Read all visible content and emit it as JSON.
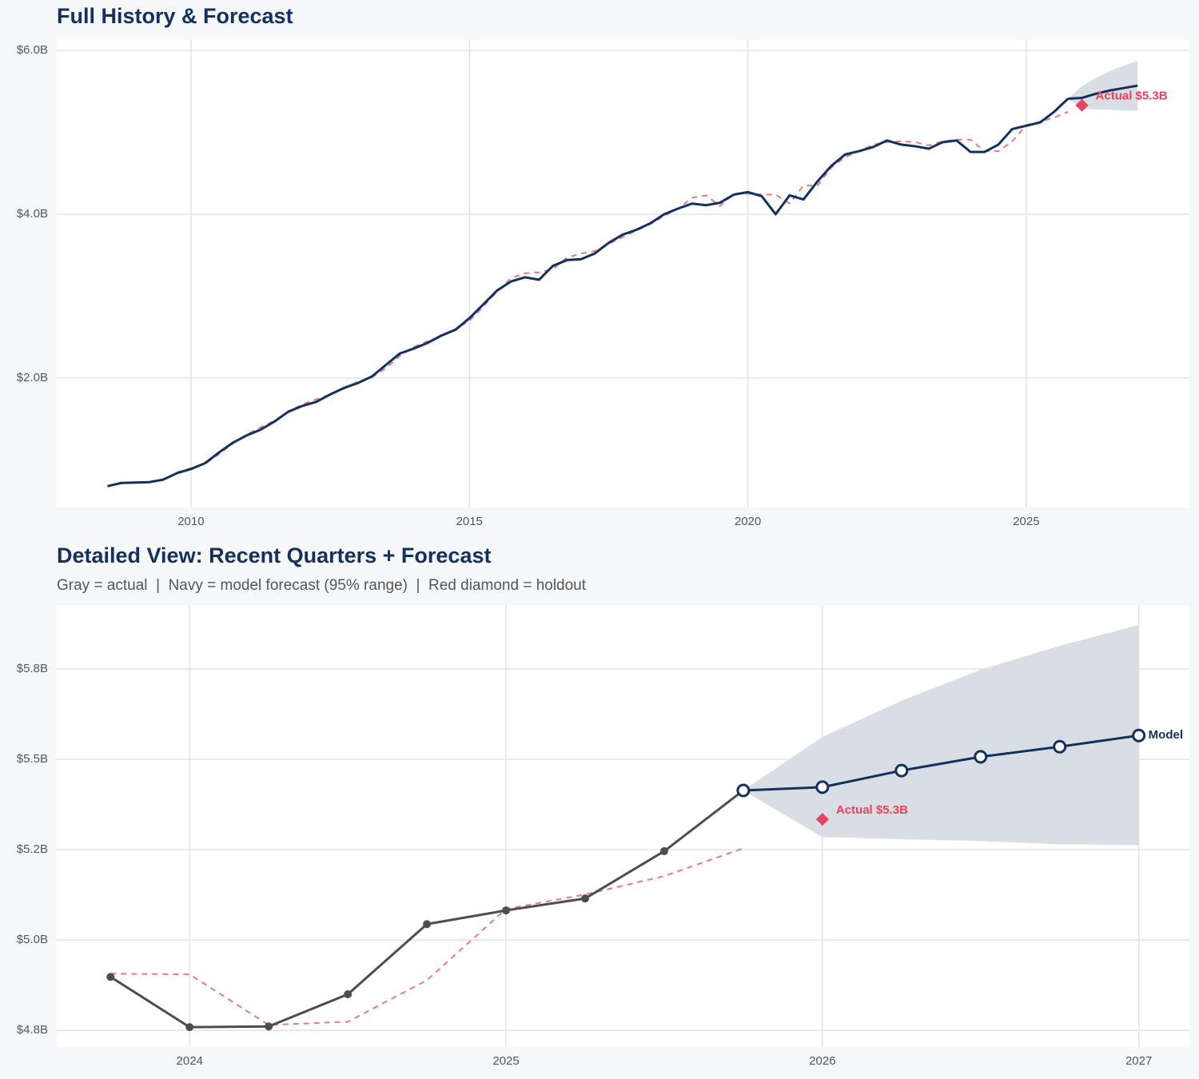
{
  "chart_data": [
    {
      "type": "line",
      "title": "Full History & Forecast",
      "xlim": [
        2007.59,
        2027.93
      ],
      "xticks": [
        2010,
        2015,
        2020,
        2025
      ],
      "ylim": [
        0.42,
        6.127
      ],
      "yticks": [
        {
          "value": 2,
          "label": "$2.0B"
        },
        {
          "value": 4,
          "label": "$4.0B"
        },
        {
          "value": 6,
          "label": "$6.0B"
        }
      ],
      "grid": true,
      "series": [
        {
          "color": "#e8788a",
          "dash": true,
          "marker": "none",
          "x": [
            2008.5,
            2008.75,
            2009,
            2009.25,
            2009.5,
            2009.75,
            2010,
            2010.25,
            2010.5,
            2010.75,
            2011,
            2011.25,
            2011.5,
            2011.75,
            2012,
            2012.25,
            2012.5,
            2012.75,
            2013,
            2013.25,
            2013.5,
            2013.75,
            2014,
            2014.25,
            2014.5,
            2014.75,
            2015,
            2015.25,
            2015.5,
            2015.75,
            2016,
            2016.25,
            2016.5,
            2016.75,
            2017,
            2017.25,
            2017.5,
            2017.75,
            2018,
            2018.25,
            2018.5,
            2018.75,
            2019,
            2019.25,
            2019.5,
            2019.75,
            2020,
            2020.25,
            2020.5,
            2020.75,
            2021,
            2021.25,
            2021.5,
            2021.75,
            2022,
            2022.25,
            2022.5,
            2022.75,
            2023,
            2023.25,
            2023.5,
            2023.75,
            2024,
            2024.25,
            2024.5,
            2024.75,
            2025,
            2025.25,
            2025.5,
            2025.75
          ],
          "values": [
            null,
            null,
            null,
            null,
            null,
            0.85,
            0.9,
            0.95,
            1.07,
            1.2,
            1.31,
            1.4,
            1.48,
            1.59,
            1.68,
            1.74,
            1.8,
            1.87,
            1.96,
            2.01,
            2.12,
            2.27,
            2.38,
            2.45,
            2.51,
            2.6,
            2.7,
            2.87,
            3.06,
            3.22,
            3.28,
            3.29,
            3.33,
            3.47,
            3.52,
            3.55,
            3.64,
            3.72,
            3.8,
            3.88,
            3.98,
            4.07,
            4.2,
            4.23,
            4.1,
            4.25,
            4.25,
            4.24,
            4.24,
            4.13,
            4.35,
            4.35,
            4.57,
            4.7,
            4.77,
            4.85,
            4.88,
            4.89,
            4.88,
            4.84,
            4.89,
            4.91,
            4.91,
            4.77,
            4.77,
            4.89,
            5.09,
            5.13,
            5.18,
            5.25
          ]
        },
        {
          "color": "#13315c",
          "marker": "none",
          "x": [
            2008.5,
            2008.75,
            2009,
            2009.25,
            2009.5,
            2009.75,
            2010,
            2010.25,
            2010.5,
            2010.75,
            2011,
            2011.25,
            2011.5,
            2011.75,
            2012,
            2012.25,
            2012.5,
            2012.75,
            2013,
            2013.25,
            2013.5,
            2013.75,
            2014,
            2014.25,
            2014.5,
            2014.75,
            2015,
            2015.25,
            2015.5,
            2015.75,
            2016,
            2016.25,
            2016.5,
            2016.75,
            2017,
            2017.25,
            2017.5,
            2017.75,
            2018,
            2018.25,
            2018.5,
            2018.75,
            2019,
            2019.25,
            2019.5,
            2019.75,
            2020,
            2020.25,
            2020.5,
            2020.75,
            2021,
            2021.25,
            2021.5,
            2021.75,
            2022,
            2022.25,
            2022.5,
            2022.75,
            2023,
            2023.25,
            2023.5,
            2023.75,
            2024,
            2024.25,
            2024.5,
            2024.75,
            2025,
            2025.25,
            2025.5,
            2025.75
          ],
          "values": [
            0.68,
            0.72,
            0.725,
            0.73,
            0.76,
            0.84,
            0.89,
            0.96,
            1.09,
            1.21,
            1.3,
            1.37,
            1.47,
            1.59,
            1.66,
            1.71,
            1.8,
            1.88,
            1.94,
            2.02,
            2.16,
            2.3,
            2.36,
            2.43,
            2.52,
            2.59,
            2.73,
            2.9,
            3.07,
            3.18,
            3.23,
            3.2,
            3.37,
            3.44,
            3.45,
            3.52,
            3.65,
            3.75,
            3.81,
            3.89,
            4.0,
            4.07,
            4.13,
            4.11,
            4.14,
            4.24,
            4.27,
            4.22,
            4.0,
            4.23,
            4.18,
            4.4,
            4.59,
            4.73,
            4.77,
            4.82,
            4.9,
            4.85,
            4.83,
            4.8,
            4.88,
            4.9,
            4.76,
            4.76,
            4.85,
            5.04,
            5.08,
            5.12,
            5.25,
            5.41
          ]
        },
        {
          "color": "#13315c",
          "marker": "none",
          "band_color": "#d9dde4",
          "x": [
            2025.75,
            2026,
            2026.25,
            2026.5,
            2026.75,
            2027
          ],
          "values": [
            5.41,
            5.42,
            5.47,
            5.51,
            5.54,
            5.57
          ],
          "band_lower": [
            5.41,
            5.285,
            5.279,
            5.274,
            5.265,
            5.263
          ],
          "band_upper": [
            5.41,
            5.562,
            5.662,
            5.748,
            5.814,
            5.872
          ]
        }
      ],
      "annotations": [
        {
          "x": 2026,
          "y": 5.33,
          "label": "Actual $5.3B",
          "color": "#e8435e"
        }
      ]
    },
    {
      "type": "line",
      "title": "Detailed View: Recent Quarters + Forecast",
      "subtitle": "Gray = actual  |  Navy = model forecast (95% range)  |  Red diamond = holdout",
      "xlim": [
        2023.58,
        2027.16
      ],
      "xticks": [
        2024,
        2025,
        2026,
        2027
      ],
      "ylim": [
        4.704,
        5.927
      ],
      "yticks": [
        {
          "value": 4.75,
          "label": "$4.8B"
        },
        {
          "value": 5,
          "label": "$5.0B"
        },
        {
          "value": 5.25,
          "label": "$5.2B"
        },
        {
          "value": 5.5,
          "label": "$5.5B"
        },
        {
          "value": 5.75,
          "label": "$5.8B"
        }
      ],
      "grid": true,
      "series": [
        {
          "color": "#e8788a",
          "dash": true,
          "marker": "none",
          "x": [
            2023.75,
            2024,
            2024.25,
            2024.5,
            2024.75,
            2025,
            2025.25,
            2025.5,
            2025.75
          ],
          "values": [
            4.907,
            4.905,
            4.765,
            4.774,
            4.889,
            5.086,
            5.126,
            5.177,
            5.254
          ]
        },
        {
          "color": "#4d4d4d",
          "marker": "filled",
          "x": [
            2023.75,
            2024,
            2024.25,
            2024.5,
            2024.75,
            2025,
            2025.25,
            2025.5,
            2025.75
          ],
          "values": [
            4.898,
            4.759,
            4.761,
            4.85,
            5.044,
            5.082,
            5.115,
            5.246,
            5.414
          ]
        },
        {
          "name": "Model",
          "color": "#13315c",
          "marker": "open",
          "band_color": "#d9dde4",
          "x": [
            2025.75,
            2026,
            2026.25,
            2026.5,
            2026.75,
            2027
          ],
          "values": [
            5.414,
            5.423,
            5.469,
            5.507,
            5.535,
            5.566
          ],
          "band_lower": [
            5.414,
            5.285,
            5.279,
            5.274,
            5.265,
            5.263
          ],
          "band_upper": [
            5.414,
            5.562,
            5.662,
            5.748,
            5.814,
            5.872
          ]
        }
      ],
      "annotations": [
        {
          "x": 2026,
          "y": 5.334,
          "label": "Actual $5.3B",
          "color": "#e8435e"
        }
      ]
    }
  ]
}
